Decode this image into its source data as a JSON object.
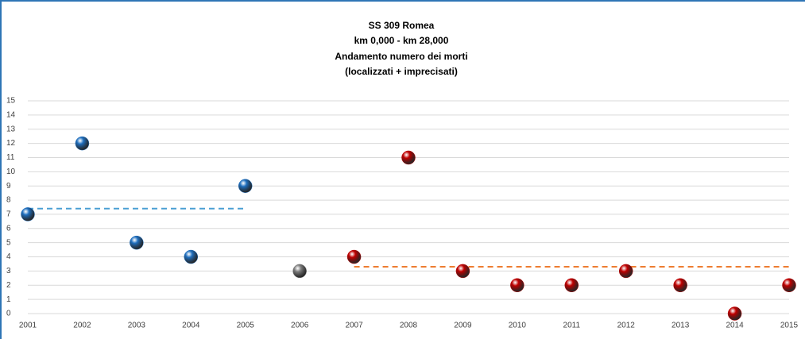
{
  "chart_data": {
    "type": "scatter",
    "title": [
      "SS 309 Romea",
      "km 0,000 - km 28,000",
      "Andamento numero dei morti",
      "(localizzati + imprecisati)"
    ],
    "categories": [
      "2001",
      "2002",
      "2003",
      "2004",
      "2005",
      "2006",
      "2007",
      "2008",
      "2009",
      "2010",
      "2011",
      "2012",
      "2013",
      "2014",
      "2015"
    ],
    "series": [
      {
        "color": "#1f6fbf",
        "values": [
          7,
          12,
          5,
          4,
          9,
          null,
          null,
          null,
          null,
          null,
          null,
          null,
          null,
          null,
          null
        ]
      },
      {
        "color": "#7f7f7f",
        "values": [
          null,
          null,
          null,
          null,
          null,
          3,
          null,
          null,
          null,
          null,
          null,
          null,
          null,
          null,
          null
        ]
      },
      {
        "color": "#c00000",
        "values": [
          null,
          null,
          null,
          null,
          null,
          null,
          4,
          11,
          3,
          2,
          2,
          3,
          2,
          0,
          2
        ]
      }
    ],
    "reference_lines": [
      {
        "value": 7.4,
        "color": "#4a9fd4",
        "from": "2001",
        "to": "2005"
      },
      {
        "value": 3.3,
        "color": "#ed7d31",
        "from": "2007",
        "to": "2015"
      }
    ],
    "ylim": [
      0,
      15
    ],
    "yticks": [
      0,
      1,
      2,
      3,
      4,
      5,
      6,
      7,
      8,
      9,
      10,
      11,
      12,
      13,
      14,
      15
    ],
    "grid": true
  }
}
